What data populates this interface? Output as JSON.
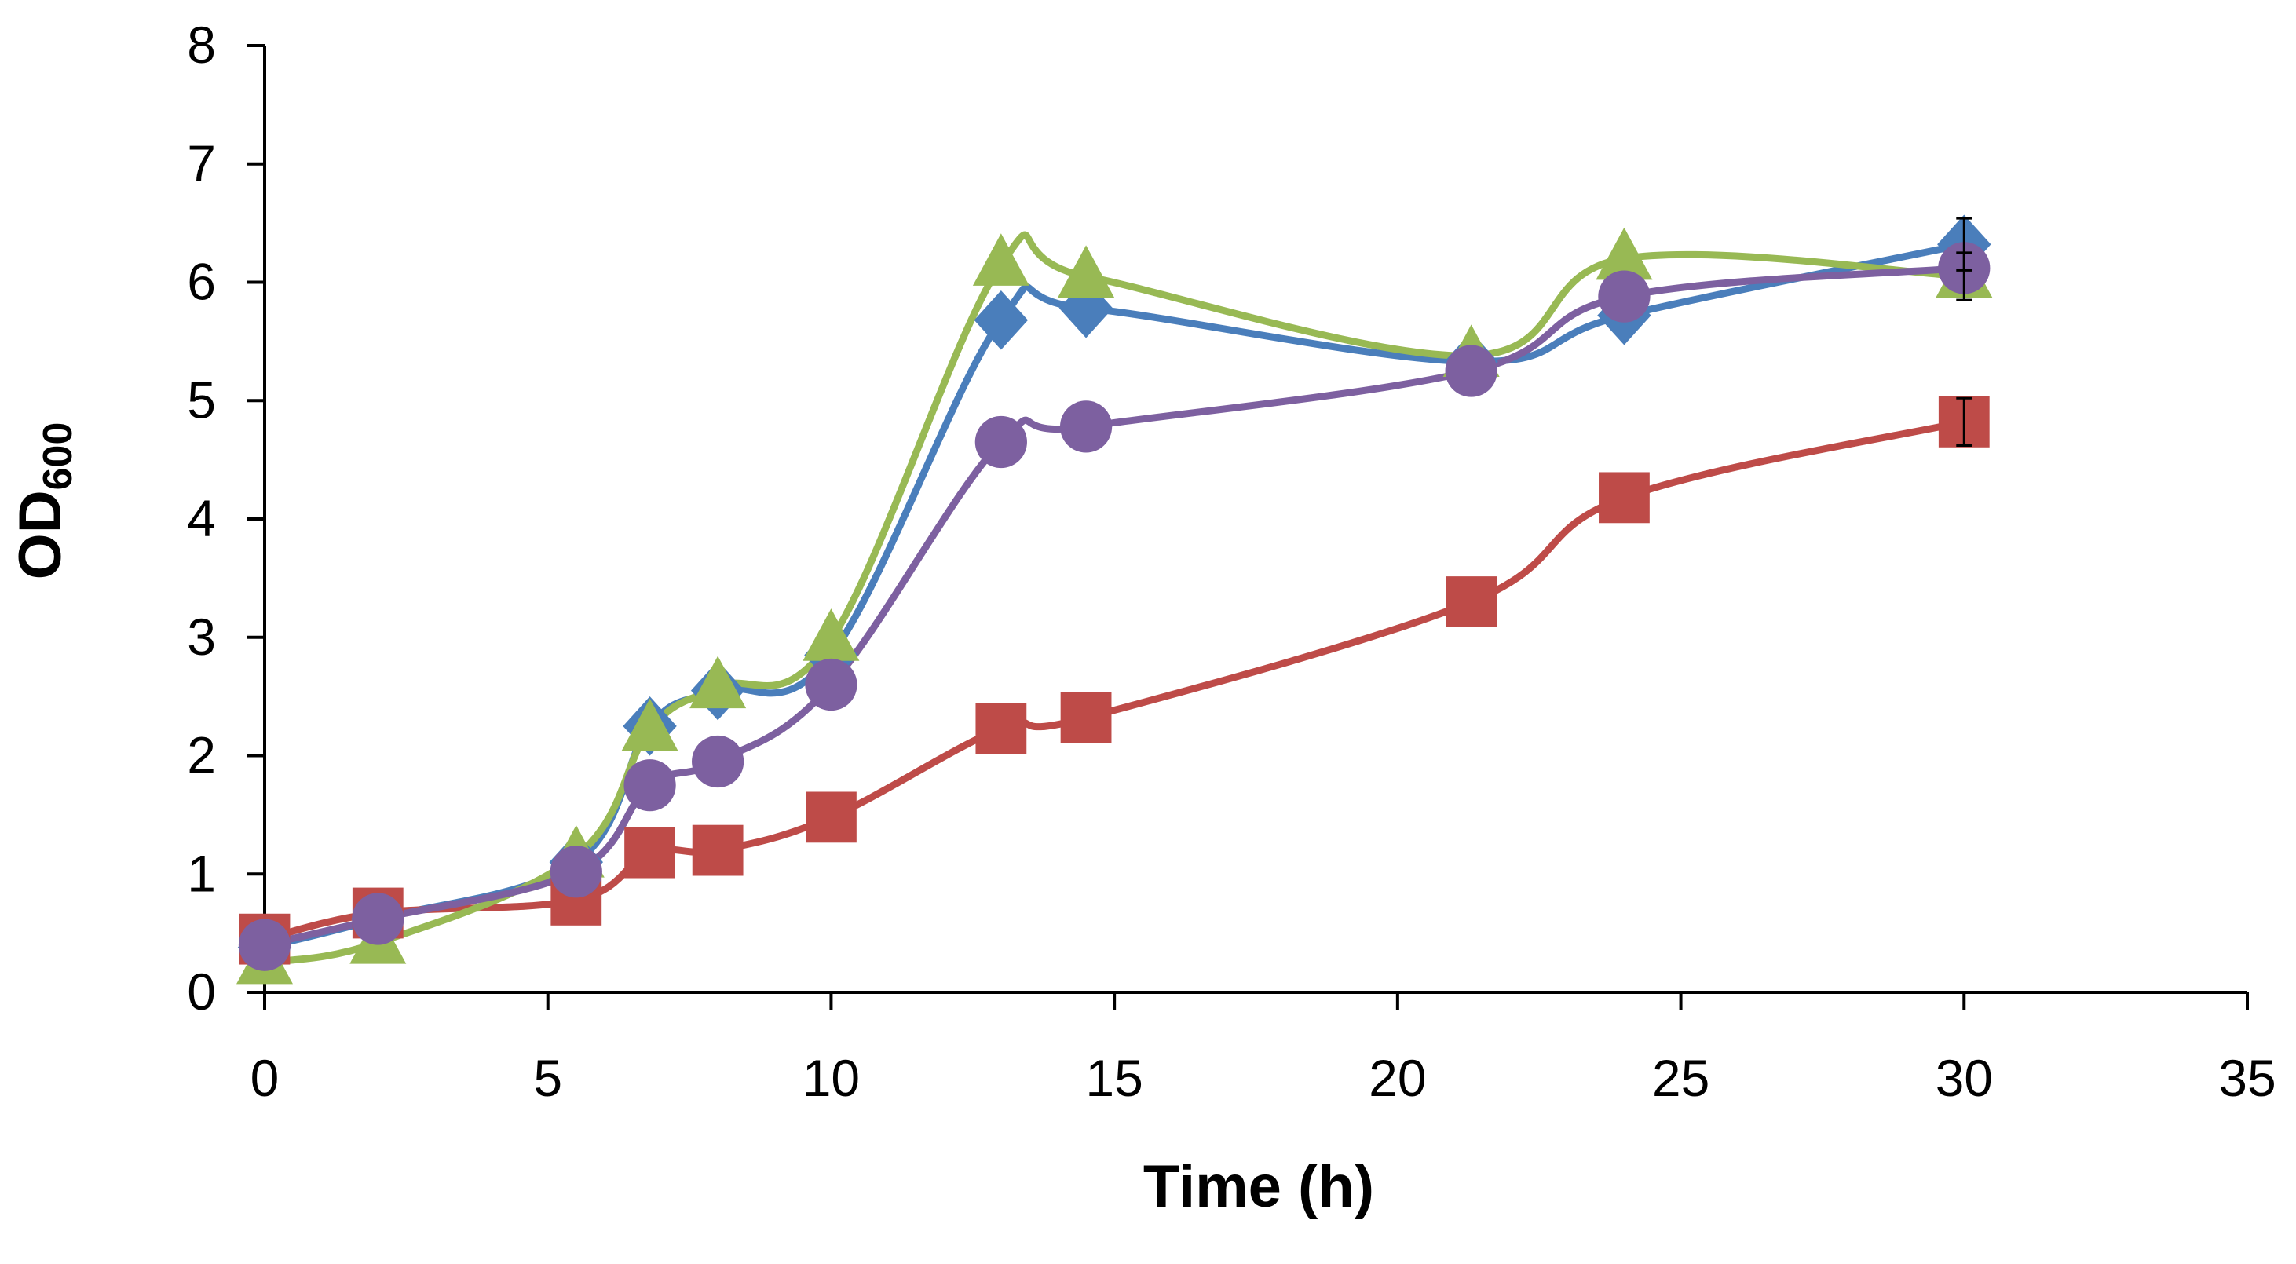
{
  "chart_data": {
    "type": "line",
    "title": "",
    "xlabel": "Time (h)",
    "ylabel": "OD",
    "ylabel_subscript": "600",
    "xlim": [
      0,
      35
    ],
    "ylim": [
      0,
      8
    ],
    "xticks": [
      0,
      5,
      10,
      15,
      20,
      25,
      30,
      35
    ],
    "yticks": [
      0,
      1,
      2,
      3,
      4,
      5,
      6,
      7,
      8
    ],
    "grid": false,
    "legend": "none",
    "x": [
      0,
      2,
      5.5,
      6.8,
      8,
      10,
      13,
      14.5,
      21.3,
      24,
      30
    ],
    "series": [
      {
        "name": "blue diamond",
        "color": "#4a7ebb",
        "marker": "diamond",
        "values": [
          0.38,
          0.62,
          1.1,
          2.25,
          2.55,
          2.85,
          5.68,
          5.78,
          5.33,
          5.72,
          6.32
        ]
      },
      {
        "name": "red square",
        "color": "#be4b48",
        "marker": "square",
        "values": [
          0.45,
          0.67,
          0.78,
          1.18,
          1.2,
          1.48,
          2.23,
          2.32,
          3.3,
          4.18,
          4.82
        ]
      },
      {
        "name": "green triangle",
        "color": "#98b954",
        "marker": "triangle",
        "values": [
          0.25,
          0.42,
          1.15,
          2.22,
          2.58,
          2.98,
          6.15,
          6.05,
          5.38,
          6.2,
          6.05
        ]
      },
      {
        "name": "purple circle",
        "color": "#7d60a0",
        "marker": "circle",
        "values": [
          0.4,
          0.62,
          1.02,
          1.75,
          1.95,
          2.6,
          4.65,
          4.78,
          5.25,
          5.88,
          6.12
        ]
      }
    ]
  }
}
